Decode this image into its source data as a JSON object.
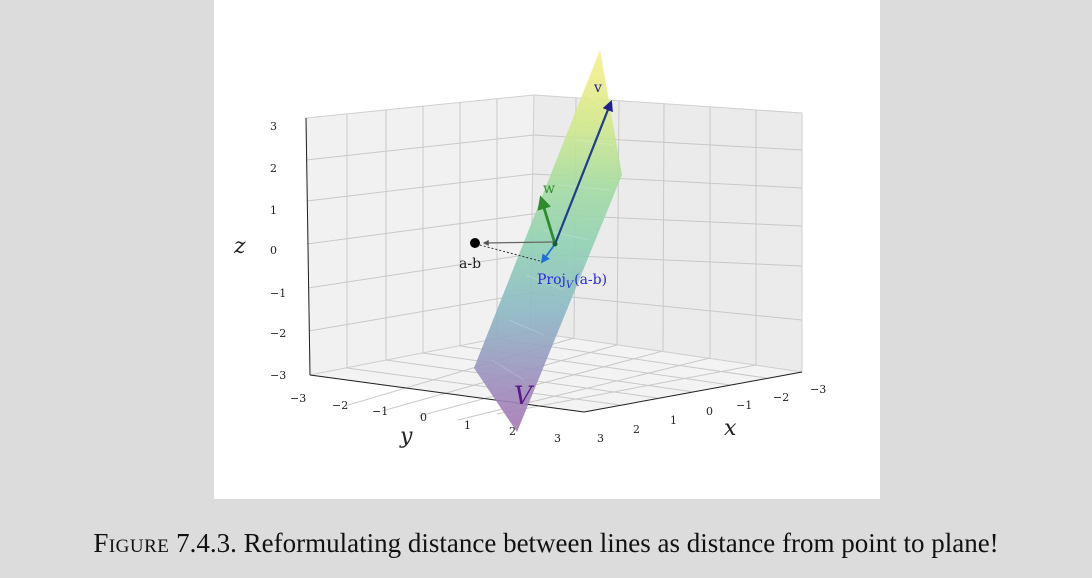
{
  "diagram": {
    "axes": {
      "x_label": "x",
      "y_label": "y",
      "z_label": "z",
      "x_ticks": [
        "−3",
        "−2",
        "−1",
        "0",
        "1",
        "2",
        "3"
      ],
      "y_ticks": [
        "−3",
        "−2",
        "−1",
        "0",
        "1",
        "2",
        "3"
      ],
      "z_ticks": [
        "−3",
        "−2",
        "−1",
        "0",
        "1",
        "2",
        "3"
      ]
    },
    "labels": {
      "v": "v",
      "w": "w",
      "a_minus_b": "a-b",
      "proj_prefix": "Proj",
      "proj_sub": "V",
      "proj_arg": "(a-b)",
      "plane": "V"
    },
    "colors": {
      "v_arrow": "#1f3c8f",
      "w_arrow": "#2e8b2e",
      "proj_arrow": "#1f6fd6",
      "proj_text": "#2b2bd6",
      "plane_label": "#5a1a86",
      "point": "#000000"
    }
  },
  "caption": {
    "prefix": "Figure",
    "number": "7.4.3.",
    "text": "Reformulating distance between lines as distance from point to plane!"
  }
}
